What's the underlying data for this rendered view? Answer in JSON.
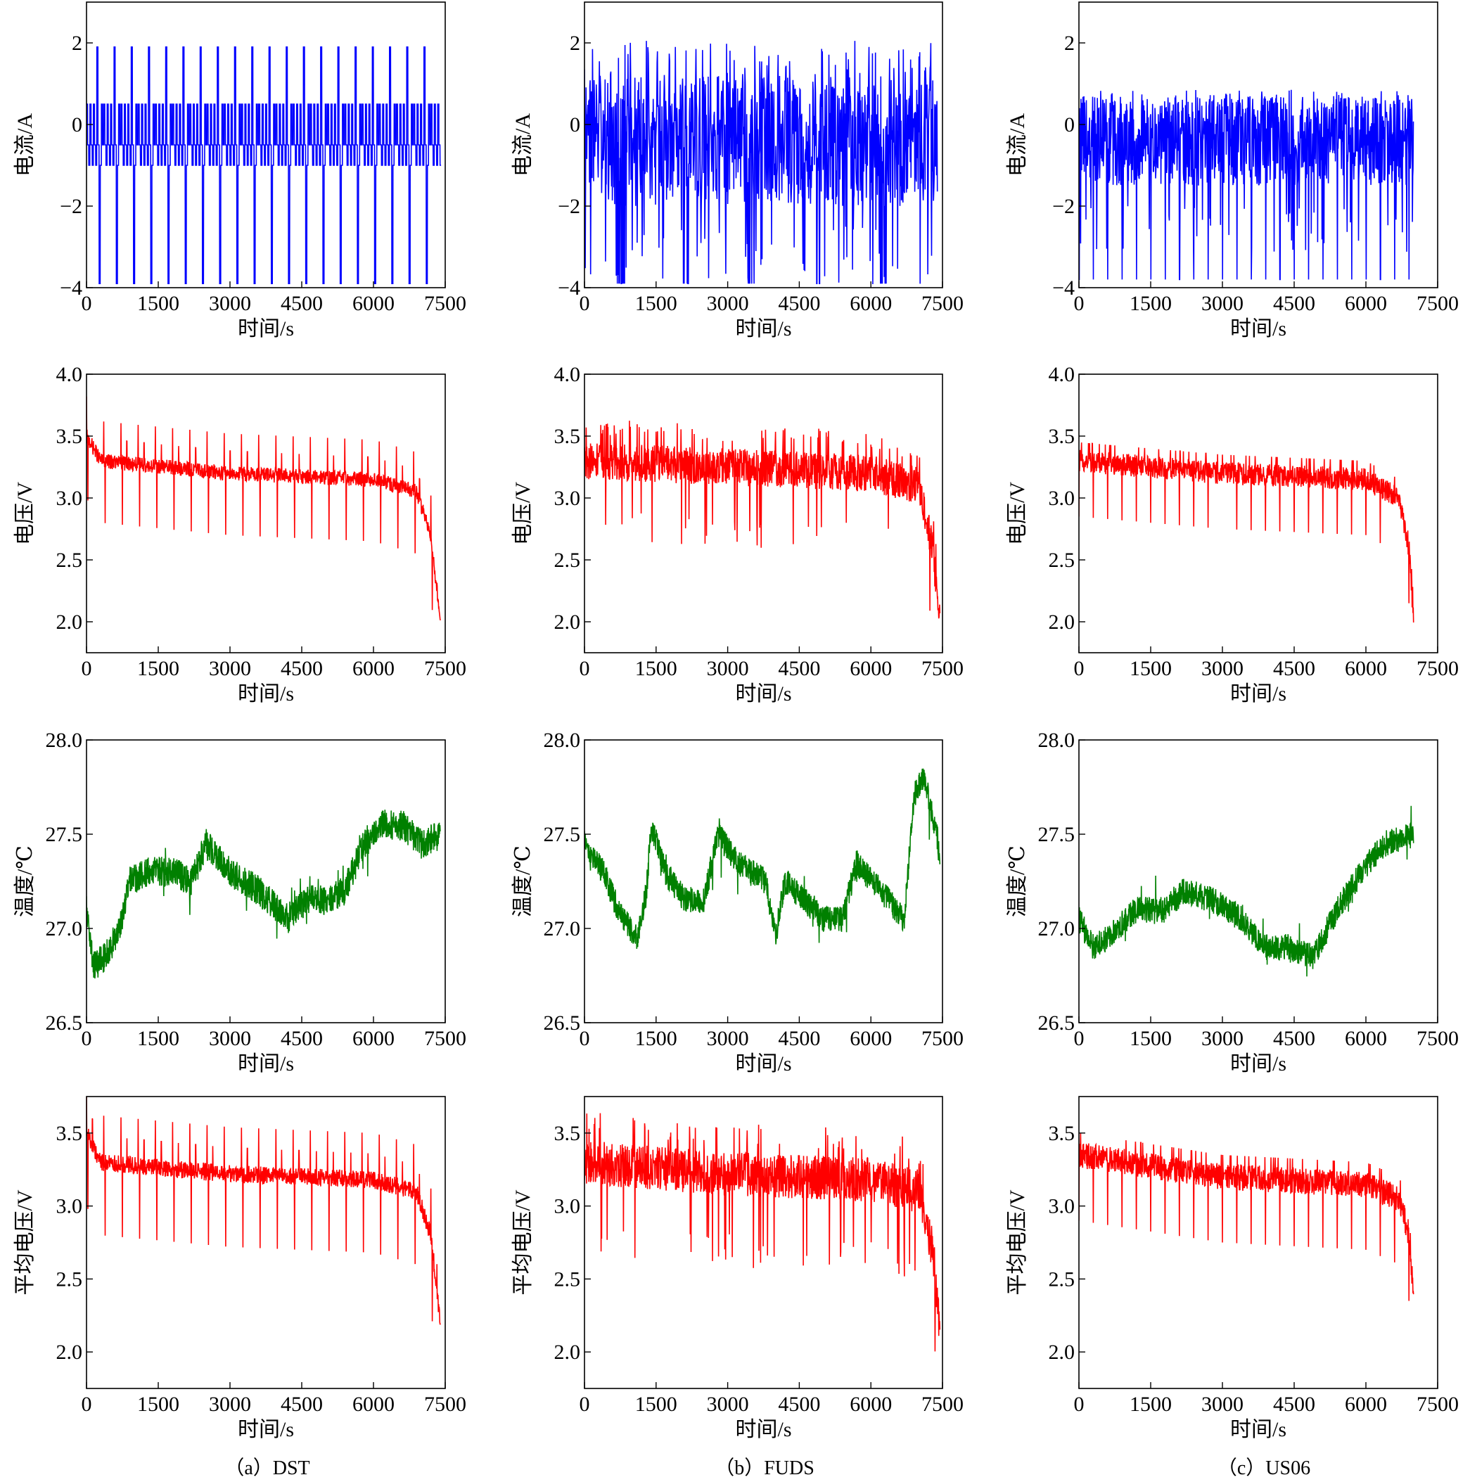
{
  "figure": {
    "captions": [
      "（a）DST",
      "（b）FUDS",
      "（c）US06"
    ]
  },
  "chart_data": [
    {
      "type": "line",
      "id": "dst-current",
      "column": "DST",
      "title": "",
      "xlabel": "时间/s",
      "ylabel": "电流/A",
      "xlim": [
        0,
        7500
      ],
      "ylim": [
        -4,
        3
      ],
      "xticks": [
        0,
        1500,
        3000,
        4500,
        6000,
        7500
      ],
      "yticks": [
        -4,
        -2,
        0,
        2
      ],
      "ytick_fmt": 0,
      "series": [
        {
          "name": "电流",
          "color": "#0000ff",
          "profile": "dst_current",
          "x_end": 7400,
          "points": [
            [
              0,
              0.5
            ],
            [
              300,
              -1
            ],
            [
              320,
              1.9
            ],
            [
              360,
              -3.9
            ],
            [
              700,
              -1
            ],
            [
              720,
              1.9
            ]
          ]
        }
      ]
    },
    {
      "type": "line",
      "id": "fuds-current",
      "column": "FUDS",
      "title": "",
      "xlabel": "时间/s",
      "ylabel": "电流/A",
      "xlim": [
        0,
        7500
      ],
      "ylim": [
        -4,
        3
      ],
      "xticks": [
        0,
        1500,
        3000,
        4500,
        6000,
        7500
      ],
      "yticks": [
        -4,
        -2,
        0,
        2
      ],
      "ytick_fmt": 0,
      "series": [
        {
          "name": "电流",
          "color": "#0000ff",
          "profile": "fuds_current",
          "x_end": 7400,
          "points": [
            [
              0,
              0
            ],
            [
              200,
              -2
            ],
            [
              400,
              2
            ],
            [
              800,
              -3.9
            ]
          ]
        }
      ]
    },
    {
      "type": "line",
      "id": "us06-current",
      "column": "US06",
      "title": "",
      "xlabel": "时间/s",
      "ylabel": "电流/A",
      "xlim": [
        0,
        7500
      ],
      "ylim": [
        -4,
        3
      ],
      "xticks": [
        0,
        1500,
        3000,
        4500,
        6000,
        7500
      ],
      "yticks": [
        -4,
        -2,
        0,
        2
      ],
      "ytick_fmt": 0,
      "series": [
        {
          "name": "电流",
          "color": "#0000ff",
          "profile": "us06_current",
          "x_end": 7000,
          "points": [
            [
              0,
              0.5
            ],
            [
              300,
              -3.8
            ],
            [
              600,
              0.8
            ]
          ]
        }
      ]
    },
    {
      "type": "line",
      "id": "dst-voltage",
      "column": "DST",
      "title": "",
      "xlabel": "时间/s",
      "ylabel": "电压/V",
      "xlim": [
        0,
        7500
      ],
      "ylim": [
        1.75,
        4.0
      ],
      "xticks": [
        0,
        1500,
        3000,
        4500,
        6000,
        7500
      ],
      "yticks": [
        2.0,
        2.5,
        3.0,
        3.5,
        4.0
      ],
      "ytick_fmt": 1,
      "series": [
        {
          "name": "电压",
          "color": "#ff0000",
          "profile": "dst_voltage",
          "x_end": 7400,
          "points": [
            [
              0,
              3.5
            ],
            [
              300,
              3.3
            ],
            [
              3000,
              3.2
            ],
            [
              6000,
              3.15
            ],
            [
              6900,
              3.05
            ],
            [
              7200,
              2.7
            ],
            [
              7400,
              2.0
            ]
          ]
        }
      ]
    },
    {
      "type": "line",
      "id": "fuds-voltage",
      "column": "FUDS",
      "title": "",
      "xlabel": "时间/s",
      "ylabel": "电压/V",
      "xlim": [
        0,
        7500
      ],
      "ylim": [
        1.75,
        4.0
      ],
      "xticks": [
        0,
        1500,
        3000,
        4500,
        6000,
        7500
      ],
      "yticks": [
        2.0,
        2.5,
        3.0,
        3.5,
        4.0
      ],
      "ytick_fmt": 1,
      "series": [
        {
          "name": "电压",
          "color": "#ff0000",
          "profile": "fuds_voltage",
          "x_end": 7450,
          "points": [
            [
              0,
              3.3
            ],
            [
              3000,
              3.25
            ],
            [
              6000,
              3.2
            ],
            [
              7000,
              3.1
            ],
            [
              7300,
              2.6
            ],
            [
              7450,
              1.95
            ]
          ]
        }
      ]
    },
    {
      "type": "line",
      "id": "us06-voltage",
      "column": "US06",
      "title": "",
      "xlabel": "时间/s",
      "ylabel": "电压/V",
      "xlim": [
        0,
        7500
      ],
      "ylim": [
        1.75,
        4.0
      ],
      "xticks": [
        0,
        1500,
        3000,
        4500,
        6000,
        7500
      ],
      "yticks": [
        2.0,
        2.5,
        3.0,
        3.5,
        4.0
      ],
      "ytick_fmt": 1,
      "series": [
        {
          "name": "电压",
          "color": "#ff0000",
          "profile": "us06_voltage",
          "x_end": 7000,
          "points": [
            [
              0,
              3.3
            ],
            [
              3000,
              3.2
            ],
            [
              6000,
              3.15
            ],
            [
              6700,
              3.0
            ],
            [
              6900,
              2.6
            ],
            [
              7000,
              2.0
            ]
          ]
        }
      ]
    },
    {
      "type": "line",
      "id": "dst-temperature",
      "column": "DST",
      "title": "",
      "xlabel": "时间/s",
      "ylabel": "温度/℃",
      "xlim": [
        0,
        7500
      ],
      "ylim": [
        26.5,
        28.0
      ],
      "xticks": [
        0,
        1500,
        3000,
        4500,
        6000,
        7500
      ],
      "yticks": [
        26.5,
        27.0,
        27.5,
        28.0
      ],
      "ytick_fmt": 1,
      "series": [
        {
          "name": "温度",
          "color": "#008000",
          "profile": "temperature",
          "x_end": 7400,
          "noise": 0.08,
          "points": [
            [
              0,
              27.1
            ],
            [
              150,
              26.8
            ],
            [
              400,
              26.85
            ],
            [
              700,
              27.0
            ],
            [
              900,
              27.25
            ],
            [
              1300,
              27.3
            ],
            [
              1800,
              27.3
            ],
            [
              2200,
              27.25
            ],
            [
              2500,
              27.45
            ],
            [
              3000,
              27.3
            ],
            [
              3600,
              27.2
            ],
            [
              4200,
              27.05
            ],
            [
              4600,
              27.15
            ],
            [
              5000,
              27.15
            ],
            [
              5400,
              27.2
            ],
            [
              5800,
              27.45
            ],
            [
              6200,
              27.55
            ],
            [
              6600,
              27.55
            ],
            [
              7000,
              27.45
            ],
            [
              7400,
              27.5
            ]
          ]
        }
      ]
    },
    {
      "type": "line",
      "id": "fuds-temperature",
      "column": "FUDS",
      "title": "",
      "xlabel": "时间/s",
      "ylabel": "温度/℃",
      "xlim": [
        0,
        7500
      ],
      "ylim": [
        26.5,
        28.0
      ],
      "xticks": [
        0,
        1500,
        3000,
        4500,
        6000,
        7500
      ],
      "yticks": [
        26.5,
        27.0,
        27.5,
        28.0
      ],
      "ytick_fmt": 1,
      "series": [
        {
          "name": "温度",
          "color": "#008000",
          "profile": "temperature",
          "x_end": 7450,
          "noise": 0.07,
          "points": [
            [
              0,
              27.45
            ],
            [
              400,
              27.3
            ],
            [
              700,
              27.1
            ],
            [
              1100,
              26.95
            ],
            [
              1300,
              27.2
            ],
            [
              1400,
              27.55
            ],
            [
              1700,
              27.3
            ],
            [
              2100,
              27.15
            ],
            [
              2500,
              27.15
            ],
            [
              2800,
              27.5
            ],
            [
              3200,
              27.35
            ],
            [
              3800,
              27.25
            ],
            [
              4000,
              26.95
            ],
            [
              4200,
              27.25
            ],
            [
              4600,
              27.15
            ],
            [
              5000,
              27.05
            ],
            [
              5400,
              27.05
            ],
            [
              5700,
              27.35
            ],
            [
              6200,
              27.2
            ],
            [
              6700,
              27.05
            ],
            [
              6900,
              27.7
            ],
            [
              7100,
              27.8
            ],
            [
              7300,
              27.6
            ],
            [
              7450,
              27.4
            ]
          ]
        }
      ]
    },
    {
      "type": "line",
      "id": "us06-temperature",
      "column": "US06",
      "title": "",
      "xlabel": "时间/s",
      "ylabel": "温度/℃",
      "xlim": [
        0,
        7500
      ],
      "ylim": [
        26.5,
        28.0
      ],
      "xticks": [
        0,
        1500,
        3000,
        4500,
        6000,
        7500
      ],
      "yticks": [
        26.5,
        27.0,
        27.5,
        28.0
      ],
      "ytick_fmt": 1,
      "series": [
        {
          "name": "温度",
          "color": "#008000",
          "profile": "temperature",
          "x_end": 7000,
          "noise": 0.07,
          "points": [
            [
              0,
              27.05
            ],
            [
              300,
              26.9
            ],
            [
              800,
              27.0
            ],
            [
              1200,
              27.1
            ],
            [
              1800,
              27.1
            ],
            [
              2200,
              27.2
            ],
            [
              2800,
              27.15
            ],
            [
              3400,
              27.05
            ],
            [
              3900,
              26.9
            ],
            [
              4400,
              26.9
            ],
            [
              4900,
              26.85
            ],
            [
              5400,
              27.1
            ],
            [
              5900,
              27.3
            ],
            [
              6400,
              27.45
            ],
            [
              7000,
              27.5
            ]
          ]
        }
      ]
    },
    {
      "type": "line",
      "id": "dst-avg-voltage",
      "column": "DST",
      "title": "",
      "xlabel": "时间/s",
      "ylabel": "平均电压/V",
      "xlim": [
        0,
        7500
      ],
      "ylim": [
        1.75,
        3.75
      ],
      "xticks": [
        0,
        1500,
        3000,
        4500,
        6000,
        7500
      ],
      "yticks": [
        2.0,
        2.5,
        3.0,
        3.5
      ],
      "ytick_fmt": 1,
      "series": [
        {
          "name": "平均电压",
          "color": "#ff0000",
          "profile": "dst_voltage",
          "x_end": 7400,
          "points": [
            [
              0,
              3.5
            ],
            [
              300,
              3.3
            ],
            [
              3000,
              3.22
            ],
            [
              6000,
              3.18
            ],
            [
              6900,
              3.1
            ],
            [
              7200,
              2.8
            ],
            [
              7400,
              2.2
            ]
          ]
        }
      ]
    },
    {
      "type": "line",
      "id": "fuds-avg-voltage",
      "column": "FUDS",
      "title": "",
      "xlabel": "时间/s",
      "ylabel": "平均电压/V",
      "xlim": [
        0,
        7500
      ],
      "ylim": [
        1.75,
        3.75
      ],
      "xticks": [
        0,
        1500,
        3000,
        4500,
        6000,
        7500
      ],
      "yticks": [
        2.0,
        2.5,
        3.0,
        3.5
      ],
      "ytick_fmt": 1,
      "series": [
        {
          "name": "平均电压",
          "color": "#ff0000",
          "profile": "fuds_voltage",
          "x_end": 7450,
          "points": [
            [
              0,
              3.3
            ],
            [
              3000,
              3.22
            ],
            [
              6000,
              3.18
            ],
            [
              7000,
              3.1
            ],
            [
              7300,
              2.7
            ],
            [
              7450,
              2.1
            ]
          ]
        }
      ]
    },
    {
      "type": "line",
      "id": "us06-avg-voltage",
      "column": "US06",
      "title": "",
      "xlabel": "时间/s",
      "ylabel": "平均电压/V",
      "xlim": [
        0,
        7500
      ],
      "ylim": [
        1.75,
        3.75
      ],
      "xticks": [
        0,
        1500,
        3000,
        4500,
        6000,
        7500
      ],
      "yticks": [
        2.0,
        2.5,
        3.0,
        3.5
      ],
      "ytick_fmt": 1,
      "series": [
        {
          "name": "平均电压",
          "color": "#ff0000",
          "profile": "us06_voltage",
          "x_end": 7000,
          "points": [
            [
              0,
              3.35
            ],
            [
              3000,
              3.2
            ],
            [
              6000,
              3.15
            ],
            [
              6700,
              3.05
            ],
            [
              6900,
              2.8
            ],
            [
              7000,
              2.35
            ]
          ]
        }
      ]
    }
  ]
}
